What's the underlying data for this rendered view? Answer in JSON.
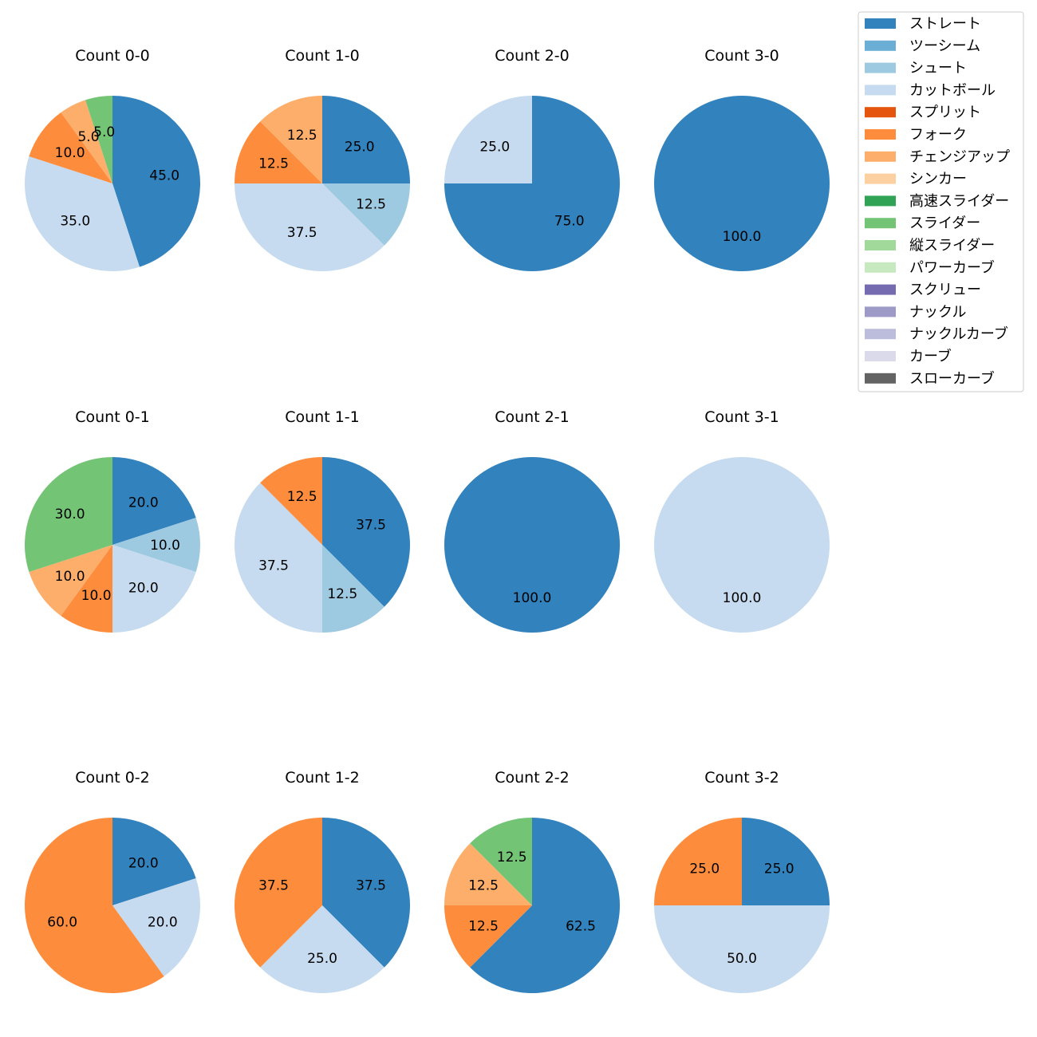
{
  "legend": {
    "items": [
      {
        "label": "ストレート",
        "color": "#3182bd"
      },
      {
        "label": "ツーシーム",
        "color": "#6baed6"
      },
      {
        "label": "シュート",
        "color": "#9ecae1"
      },
      {
        "label": "カットボール",
        "color": "#c6dbef"
      },
      {
        "label": "スプリット",
        "color": "#e6550d"
      },
      {
        "label": "フォーク",
        "color": "#fd8d3c"
      },
      {
        "label": "チェンジアップ",
        "color": "#fdae6b"
      },
      {
        "label": "シンカー",
        "color": "#fdd0a2"
      },
      {
        "label": "高速スライダー",
        "color": "#31a354"
      },
      {
        "label": "スライダー",
        "color": "#74c476"
      },
      {
        "label": "縦スライダー",
        "color": "#a1d99b"
      },
      {
        "label": "パワーカーブ",
        "color": "#c7e9c0"
      },
      {
        "label": "スクリュー",
        "color": "#756bb1"
      },
      {
        "label": "ナックル",
        "color": "#9e9ac8"
      },
      {
        "label": "ナックルカーブ",
        "color": "#bcbddc"
      },
      {
        "label": "カーブ",
        "color": "#dadaeb"
      },
      {
        "label": "スローカーブ",
        "color": "#636363"
      }
    ]
  },
  "chart_data": [
    {
      "type": "pie",
      "title": "Count 0-0",
      "slices": [
        {
          "label": "ストレート",
          "value": 45.0
        },
        {
          "label": "カットボール",
          "value": 35.0
        },
        {
          "label": "フォーク",
          "value": 10.0
        },
        {
          "label": "チェンジアップ",
          "value": 5.0
        },
        {
          "label": "スライダー",
          "value": 5.0
        }
      ]
    },
    {
      "type": "pie",
      "title": "Count 1-0",
      "slices": [
        {
          "label": "ストレート",
          "value": 25.0
        },
        {
          "label": "シュート",
          "value": 12.5
        },
        {
          "label": "カットボール",
          "value": 37.5
        },
        {
          "label": "フォーク",
          "value": 12.5
        },
        {
          "label": "チェンジアップ",
          "value": 12.5
        }
      ]
    },
    {
      "type": "pie",
      "title": "Count 2-0",
      "slices": [
        {
          "label": "ストレート",
          "value": 75.0
        },
        {
          "label": "カットボール",
          "value": 25.0
        }
      ]
    },
    {
      "type": "pie",
      "title": "Count 3-0",
      "slices": [
        {
          "label": "ストレート",
          "value": 100.0
        }
      ]
    },
    {
      "type": "pie",
      "title": "Count 0-1",
      "slices": [
        {
          "label": "ストレート",
          "value": 20.0
        },
        {
          "label": "シュート",
          "value": 10.0
        },
        {
          "label": "カットボール",
          "value": 20.0
        },
        {
          "label": "フォーク",
          "value": 10.0
        },
        {
          "label": "チェンジアップ",
          "value": 10.0
        },
        {
          "label": "スライダー",
          "value": 30.0
        }
      ]
    },
    {
      "type": "pie",
      "title": "Count 1-1",
      "slices": [
        {
          "label": "ストレート",
          "value": 37.5
        },
        {
          "label": "シュート",
          "value": 12.5
        },
        {
          "label": "カットボール",
          "value": 37.5
        },
        {
          "label": "フォーク",
          "value": 12.5
        }
      ]
    },
    {
      "type": "pie",
      "title": "Count 2-1",
      "slices": [
        {
          "label": "ストレート",
          "value": 100.0
        }
      ]
    },
    {
      "type": "pie",
      "title": "Count 3-1",
      "slices": [
        {
          "label": "カットボール",
          "value": 100.0
        }
      ]
    },
    {
      "type": "pie",
      "title": "Count 0-2",
      "slices": [
        {
          "label": "ストレート",
          "value": 20.0
        },
        {
          "label": "カットボール",
          "value": 20.0
        },
        {
          "label": "フォーク",
          "value": 60.0
        }
      ]
    },
    {
      "type": "pie",
      "title": "Count 1-2",
      "slices": [
        {
          "label": "ストレート",
          "value": 37.5
        },
        {
          "label": "カットボール",
          "value": 25.0
        },
        {
          "label": "フォーク",
          "value": 37.5
        }
      ]
    },
    {
      "type": "pie",
      "title": "Count 2-2",
      "slices": [
        {
          "label": "ストレート",
          "value": 62.5
        },
        {
          "label": "フォーク",
          "value": 12.5
        },
        {
          "label": "チェンジアップ",
          "value": 12.5
        },
        {
          "label": "スライダー",
          "value": 12.5
        }
      ]
    },
    {
      "type": "pie",
      "title": "Count 3-2",
      "slices": [
        {
          "label": "ストレート",
          "value": 25.0
        },
        {
          "label": "カットボール",
          "value": 50.0
        },
        {
          "label": "フォーク",
          "value": 25.0
        }
      ]
    }
  ]
}
